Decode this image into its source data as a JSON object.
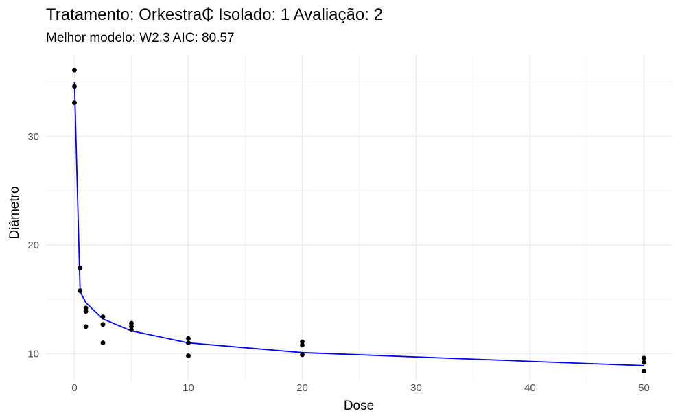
{
  "chart_data": {
    "type": "scatter",
    "title": "Tratamento: Orkestra₵ Isolado: 1 Avaliação: 2",
    "subtitle": "Melhor modelo: W2.3 AIC: 80.57",
    "xlabel": "Dose",
    "ylabel": "Diâmetro",
    "xlim": [
      -2.5,
      52.5
    ],
    "ylim": [
      7.5,
      37.5
    ],
    "xticks": [
      0,
      10,
      20,
      30,
      40,
      50
    ],
    "yticks": [
      10,
      20,
      30
    ],
    "grid": true,
    "legend": "none",
    "points": [
      {
        "x": 0,
        "y": 36.1
      },
      {
        "x": 0,
        "y": 34.6
      },
      {
        "x": 0,
        "y": 33.1
      },
      {
        "x": 0.5,
        "y": 17.9
      },
      {
        "x": 0.5,
        "y": 17.9
      },
      {
        "x": 0.5,
        "y": 15.8
      },
      {
        "x": 1,
        "y": 14.2
      },
      {
        "x": 1,
        "y": 13.9
      },
      {
        "x": 1,
        "y": 12.5
      },
      {
        "x": 2.5,
        "y": 13.4
      },
      {
        "x": 2.5,
        "y": 12.7
      },
      {
        "x": 2.5,
        "y": 11.0
      },
      {
        "x": 5,
        "y": 12.8
      },
      {
        "x": 5,
        "y": 12.5
      },
      {
        "x": 5,
        "y": 12.2
      },
      {
        "x": 10,
        "y": 11.4
      },
      {
        "x": 10,
        "y": 11.0
      },
      {
        "x": 10,
        "y": 9.8
      },
      {
        "x": 20,
        "y": 11.1
      },
      {
        "x": 20,
        "y": 10.8
      },
      {
        "x": 20,
        "y": 9.9
      },
      {
        "x": 50,
        "y": 9.6
      },
      {
        "x": 50,
        "y": 9.2
      },
      {
        "x": 50,
        "y": 8.4
      }
    ],
    "fit_line": {
      "color": "#0000ff",
      "x": [
        0,
        0.5,
        1,
        2.5,
        5,
        10,
        20,
        50
      ],
      "y": [
        35.0,
        15.7,
        14.7,
        13.2,
        12.1,
        11.0,
        10.1,
        8.9
      ]
    },
    "point_color": "#000000"
  }
}
